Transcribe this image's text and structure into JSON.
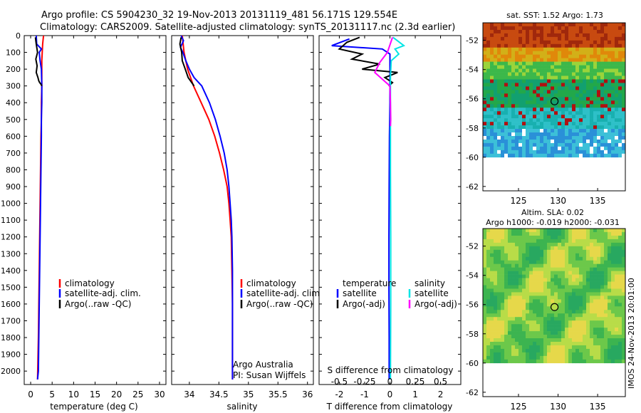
{
  "header": {
    "line1": "Argo profile: CS 5904230_32 19-Nov-2013 20131119_481 56.171S 129.554E",
    "line2": "Climatology: CARS2009. Satellite-adjusted climatology: synTS_20131117.nc (2.3d earlier)"
  },
  "colors": {
    "climatology": "#ff0000",
    "satellite_adj": "#0000ff",
    "argo": "#000000",
    "salinity_satellite": "#00e5e5",
    "salinity_argo": "#ff00ff"
  },
  "chart_data": [
    {
      "type": "line",
      "panel": "temperature",
      "xlabel": "temperature (deg C)",
      "xlim": [
        -1.5,
        31.5
      ],
      "xticks": [
        0,
        5,
        10,
        15,
        20,
        25,
        30
      ],
      "ylim": [
        0,
        2080
      ],
      "yticks": [
        0,
        100,
        200,
        300,
        400,
        500,
        600,
        700,
        800,
        900,
        1000,
        1100,
        1200,
        1300,
        1400,
        1500,
        1600,
        1700,
        1800,
        1900,
        2000
      ],
      "y_reversed": true,
      "legend": [
        "climatology",
        "satellite-adj. clim.",
        "Argo(..raw -QC)"
      ],
      "series": [
        {
          "name": "climatology",
          "color": "#ff0000",
          "x": [
            3.0,
            2.8,
            2.7,
            2.6,
            2.6,
            2.6,
            2.5,
            2.5,
            2.4,
            2.3,
            2.2,
            2.1,
            2.0,
            1.9,
            1.8,
            1.6
          ],
          "y": [
            0,
            50,
            100,
            150,
            200,
            300,
            400,
            500,
            600,
            800,
            1000,
            1200,
            1400,
            1600,
            1800,
            2050
          ]
        },
        {
          "name": "satellite-adj. clim.",
          "color": "#0000ff",
          "x": [
            1.3,
            1.4,
            2.5,
            2.0,
            2.2,
            2.5,
            2.6,
            2.6,
            2.5,
            2.5,
            2.4,
            2.3,
            2.2,
            2.1,
            2.0,
            1.9,
            1.8,
            1.6
          ],
          "y": [
            0,
            50,
            80,
            100,
            150,
            200,
            300,
            400,
            500,
            600,
            800,
            1000,
            1200,
            1400,
            1600,
            1800,
            2000,
            2050
          ]
        },
        {
          "name": "Argo(..raw -QC)",
          "color": "#000000",
          "x": [
            1.1,
            1.3,
            1.6,
            1.2,
            1.5,
            1.3,
            1.7,
            1.9,
            2.1,
            2.4,
            2.6
          ],
          "y": [
            10,
            50,
            100,
            140,
            180,
            220,
            250,
            270,
            280,
            290,
            300
          ]
        }
      ]
    },
    {
      "type": "line",
      "panel": "salinity",
      "xlabel": "salinity",
      "xlim": [
        33.7,
        36.1
      ],
      "xticks": [
        34,
        34.5,
        35,
        35.5,
        36
      ],
      "ylim": [
        0,
        2080
      ],
      "y_reversed": true,
      "legend": [
        "climatology",
        "satellite-adj. clim.",
        "Argo(..raw -QC)"
      ],
      "annotations": [
        "Argo Australia",
        "PI: Susan Wijffels"
      ],
      "series": [
        {
          "name": "climatology",
          "color": "#ff0000",
          "x": [
            33.88,
            33.91,
            33.97,
            34.07,
            34.2,
            34.33,
            34.43,
            34.51,
            34.58,
            34.64,
            34.67,
            34.69,
            34.71,
            34.72,
            34.73,
            34.73,
            34.73
          ],
          "y": [
            0,
            100,
            200,
            300,
            400,
            500,
            600,
            700,
            800,
            900,
            1000,
            1100,
            1200,
            1400,
            1600,
            1800,
            2050
          ]
        },
        {
          "name": "satellite-adj. clim.",
          "color": "#0000ff",
          "x": [
            33.86,
            33.9,
            33.85,
            33.89,
            33.94,
            34.0,
            34.08,
            34.21,
            34.34,
            34.44,
            34.52,
            34.59,
            34.64,
            34.67,
            34.69,
            34.71,
            34.72,
            34.73,
            34.73,
            34.73
          ],
          "y": [
            0,
            30,
            70,
            100,
            150,
            200,
            250,
            300,
            400,
            500,
            600,
            700,
            800,
            900,
            1000,
            1100,
            1200,
            1400,
            1800,
            2050
          ]
        },
        {
          "name": "Argo(..raw -QC)",
          "color": "#000000",
          "x": [
            33.86,
            33.84,
            33.87,
            33.88,
            33.93,
            33.98,
            34.08
          ],
          "y": [
            10,
            50,
            100,
            150,
            200,
            250,
            300
          ]
        }
      ]
    },
    {
      "type": "line",
      "panel": "difference",
      "xlabel": "T difference from climatology",
      "xlabel_top": "S difference from climatology",
      "xlim": [
        -2.8,
        2.8
      ],
      "xticks": [
        -2,
        -1,
        0,
        1,
        2
      ],
      "top_ticks": [
        -0.5,
        -0.25,
        0,
        0.25,
        0.5
      ],
      "ylim": [
        0,
        2080
      ],
      "y_reversed": true,
      "legend_temperature": {
        "heading": "temperature",
        "items": [
          "satellite",
          "Argo(-adj)"
        ]
      },
      "legend_salinity": {
        "heading": "salinity",
        "items": [
          "satellite",
          "Argo(-adj)"
        ]
      },
      "series": [
        {
          "name": "temperature satellite",
          "color": "#0000ff",
          "x": [
            -1.6,
            -2.3,
            -0.3,
            0.0,
            0.0,
            0.0,
            0.0,
            -0.02,
            -0.03,
            -0.04,
            -0.04,
            -0.03,
            -0.03
          ],
          "y": [
            20,
            60,
            80,
            110,
            150,
            250,
            400,
            600,
            900,
            1200,
            1500,
            1800,
            2050
          ]
        },
        {
          "name": "temperature Argo(-adj)",
          "color": "#000000",
          "x": [
            -1.2,
            -1.7,
            -2.0,
            -1.1,
            -1.5,
            -0.4,
            -1.1,
            0.3,
            -0.2,
            0.1,
            -0.05
          ],
          "y": [
            10,
            40,
            80,
            110,
            140,
            170,
            200,
            220,
            250,
            280,
            300
          ]
        },
        {
          "name": "salinity satellite",
          "color": "#00e5e5",
          "x": [
            0.12,
            0.55,
            0.2,
            0.35,
            0.05,
            0.02,
            0.02,
            0.02,
            0.03,
            0.03,
            0.02
          ],
          "y": [
            10,
            60,
            80,
            110,
            150,
            250,
            500,
            800,
            1200,
            1600,
            2050
          ]
        },
        {
          "name": "salinity Argo(-adj)",
          "color": "#ff00ff",
          "x": [
            0.1,
            -0.1,
            -0.4,
            -0.6,
            0.0,
            0.02,
            0.03,
            0.02
          ],
          "y": [
            10,
            100,
            160,
            220,
            300,
            400,
            500,
            540
          ]
        }
      ]
    },
    {
      "type": "heatmap",
      "panel": "sst-map",
      "title": "sat. SST: 1.52 Argo: 1.73",
      "xlim": [
        120.5,
        138.5
      ],
      "ylim": [
        -62.3,
        -50.8
      ],
      "xticks": [
        125,
        130,
        135
      ],
      "yticks": [
        -52,
        -54,
        -56,
        -58,
        -60,
        -62
      ],
      "data_extent_south": -60,
      "marker": {
        "lon": 129.554,
        "lat": -56.171
      }
    },
    {
      "type": "heatmap",
      "panel": "sla-map",
      "title": "Altim. SLA: 0.02",
      "subtitle": "Argo h1000: -0.019 h2000: -0.031",
      "xlim": [
        120.5,
        138.5
      ],
      "ylim": [
        -62.3,
        -50.8
      ],
      "xticks": [
        125,
        130,
        135
      ],
      "yticks": [
        -52,
        -54,
        -56,
        -58,
        -60,
        -62
      ],
      "data_extent_south": -60,
      "marker": {
        "lon": 129.554,
        "lat": -56.171
      }
    }
  ],
  "footer": {
    "imos_stamp": "IMOS 24-Nov-2013 20:01:00"
  }
}
